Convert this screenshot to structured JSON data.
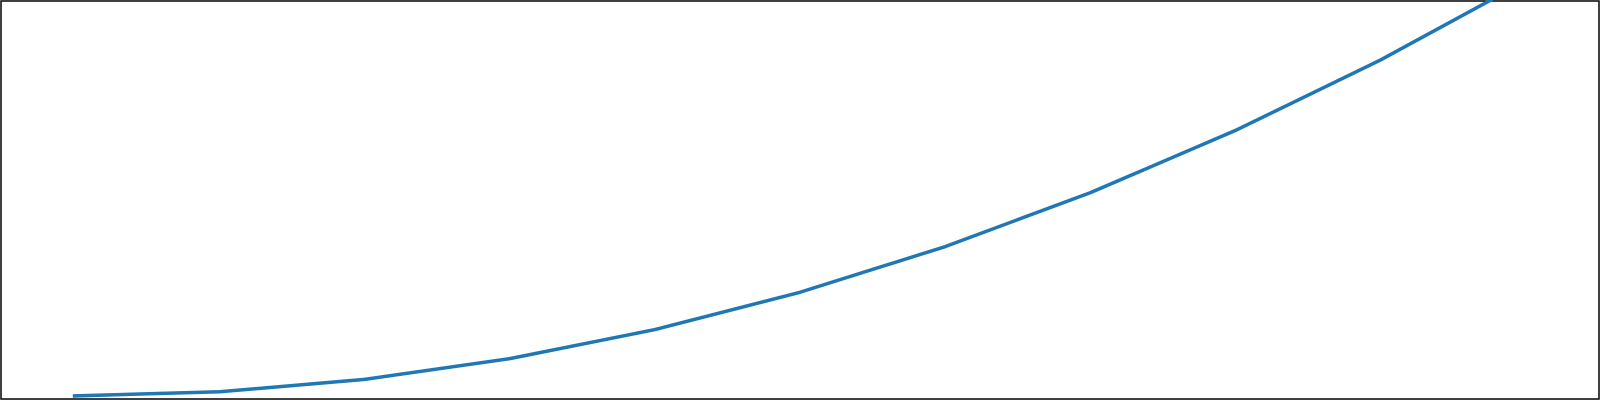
{
  "chart_data": {
    "type": "line",
    "x": [
      0,
      1,
      2,
      3,
      4,
      5,
      6,
      7,
      8,
      9,
      10
    ],
    "xlim": [
      -0.5,
      10.5
    ],
    "ylim": [
      -0.5,
      95.0
    ],
    "series": [
      {
        "color": "#1f77b4",
        "values": [
          0.0,
          1.0,
          4.0,
          9.0,
          16.0,
          25.0,
          36.0,
          49.0,
          64.0,
          81.0,
          100.0
        ]
      }
    ],
    "grid": false,
    "legend": "none",
    "axes_visible": false,
    "frame": true,
    "title": "",
    "xlabel": "",
    "ylabel": ""
  }
}
